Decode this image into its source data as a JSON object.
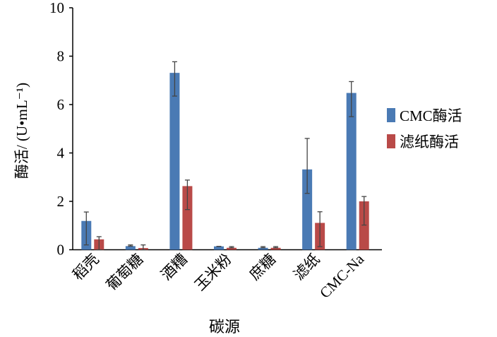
{
  "chart_data": {
    "type": "bar",
    "title": "",
    "xlabel": "碳源",
    "ylabel": "酶活/ (U•mL⁻¹)",
    "ylim": [
      0,
      10
    ],
    "yticks": [
      "0",
      "2",
      "4",
      "6",
      "8",
      "10"
    ],
    "grid": false,
    "legend_position": "right",
    "categories": [
      "稻壳",
      "葡萄糖",
      "酒糟",
      "玉米粉",
      "庶糖",
      "滤纸",
      "CMC-Na"
    ],
    "series": [
      {
        "name": "CMC酶活",
        "color": "#4a7ab4",
        "values": [
          1.19,
          0.15,
          7.31,
          0.14,
          0.08,
          3.32,
          6.48
        ],
        "err_upper": [
          0.37,
          0.05,
          0.46,
          0.0,
          0.05,
          1.28,
          0.47
        ],
        "err_lower": [
          0.99,
          0.0,
          0.96,
          0.0,
          0.0,
          0.99,
          0.98
        ]
      },
      {
        "name": "滤纸酶活",
        "color": "#b94a48",
        "values": [
          0.43,
          0.07,
          2.63,
          0.08,
          0.08,
          1.11,
          2.0
        ],
        "err_upper": [
          0.11,
          0.13,
          0.25,
          0.05,
          0.05,
          0.46,
          0.2
        ],
        "err_lower": [
          0.43,
          0.07,
          0.97,
          0.0,
          0.0,
          0.98,
          0.98
        ]
      }
    ]
  }
}
